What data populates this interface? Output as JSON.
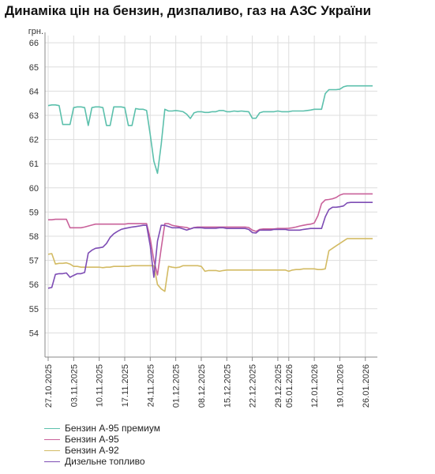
{
  "title": "Динаміка цін на бензин, дизпаливо, газ на АЗС України",
  "chart_data": {
    "type": "line",
    "title": "Динаміка цін на бензин, дизпаливо, газ на АЗС України",
    "ylabel": "грн.",
    "xlabel": "",
    "ylim": [
      53,
      66.3
    ],
    "yticks": [
      54,
      55,
      56,
      57,
      58,
      59,
      60,
      61,
      62,
      63,
      64,
      65,
      66
    ],
    "x": [
      "27.10.2025",
      "28.10.2025",
      "29.10.2025",
      "30.10.2025",
      "31.10.2025",
      "01.11.2025",
      "02.11.2025",
      "03.11.2025",
      "04.11.2025",
      "05.11.2025",
      "06.11.2025",
      "07.11.2025",
      "08.11.2025",
      "09.11.2025",
      "10.11.2025",
      "11.11.2025",
      "12.11.2025",
      "13.11.2025",
      "14.11.2025",
      "15.11.2025",
      "16.11.2025",
      "17.11.2025",
      "18.11.2025",
      "19.11.2025",
      "20.11.2025",
      "21.11.2025",
      "22.11.2025",
      "23.11.2025",
      "24.11.2025",
      "25.11.2025",
      "26.11.2025",
      "27.11.2025",
      "28.11.2025",
      "29.11.2025",
      "30.11.2025",
      "01.12.2025",
      "02.12.2025",
      "03.12.2025",
      "04.12.2025",
      "05.12.2025",
      "06.12.2025",
      "07.12.2025",
      "08.12.2025",
      "09.12.2025",
      "10.12.2025",
      "11.12.2025",
      "12.12.2025",
      "13.12.2025",
      "14.12.2025",
      "15.12.2025",
      "16.12.2025",
      "17.12.2025",
      "18.12.2025",
      "19.12.2025",
      "20.12.2025",
      "21.12.2025",
      "22.12.2025",
      "23.12.2025",
      "24.12.2025",
      "25.12.2025",
      "26.12.2025",
      "27.12.2025",
      "28.12.2025",
      "29.12.2025",
      "30.12.2025",
      "31.12.2025",
      "05.01.2026",
      "06.01.2026",
      "07.01.2026",
      "08.01.2026",
      "09.01.2026",
      "10.01.2026",
      "11.01.2026",
      "12.01.2026",
      "13.01.2026",
      "14.01.2026",
      "15.01.2026",
      "16.01.2026",
      "17.01.2026",
      "18.01.2026",
      "19.01.2026",
      "20.01.2026",
      "21.01.2026",
      "22.01.2026",
      "23.01.2026",
      "24.01.2026",
      "25.01.2026",
      "26.01.2026",
      "27.01.2026",
      "28.01.2026"
    ],
    "xtick_labels": [
      "27.10.2025",
      "03.11.2025",
      "10.11.2025",
      "17.11.2025",
      "24.11.2025",
      "01.12.2025",
      "08.12.2025",
      "15.12.2025",
      "22.12.2025",
      "29.12.2025",
      "05.01.2026",
      "12.01.2026",
      "19.01.2026",
      "26.01.2026"
    ],
    "grid": true,
    "legend_position": "bottom-left",
    "series": [
      {
        "name": "Бензин А-95 премиум",
        "color": "#5cc0ac",
        "values": [
          63.4,
          63.43,
          63.43,
          63.4,
          62.62,
          62.62,
          62.62,
          63.32,
          63.35,
          63.35,
          63.32,
          62.58,
          63.32,
          63.35,
          63.35,
          63.32,
          62.58,
          62.58,
          63.35,
          63.35,
          63.35,
          63.32,
          62.58,
          62.58,
          63.28,
          63.25,
          63.25,
          63.2,
          62.2,
          61.1,
          60.6,
          61.8,
          63.25,
          63.18,
          63.18,
          63.2,
          63.18,
          63.15,
          63.05,
          62.87,
          63.1,
          63.15,
          63.15,
          63.12,
          63.12,
          63.15,
          63.15,
          63.2,
          63.2,
          63.15,
          63.15,
          63.18,
          63.16,
          63.18,
          63.16,
          63.15,
          62.88,
          62.88,
          63.1,
          63.15,
          63.15,
          63.15,
          63.15,
          63.18,
          63.15,
          63.15,
          63.15,
          63.18,
          63.18,
          63.18,
          63.18,
          63.2,
          63.22,
          63.25,
          63.25,
          63.25,
          63.9,
          64.06,
          64.06,
          64.06,
          64.08,
          64.18,
          64.22,
          64.22,
          64.22,
          64.22,
          64.22,
          64.22,
          64.22,
          64.22
        ]
      },
      {
        "name": "Бензин А-95",
        "color": "#c9619a",
        "values": [
          58.68,
          58.68,
          58.7,
          58.7,
          58.7,
          58.7,
          58.35,
          58.35,
          58.35,
          58.35,
          58.38,
          58.42,
          58.46,
          58.5,
          58.5,
          58.5,
          58.5,
          58.5,
          58.5,
          58.5,
          58.5,
          58.5,
          58.52,
          58.52,
          58.52,
          58.52,
          58.52,
          58.52,
          57.9,
          57.0,
          56.4,
          57.5,
          58.52,
          58.52,
          58.45,
          58.42,
          58.4,
          58.38,
          58.36,
          58.3,
          58.36,
          58.38,
          58.38,
          58.38,
          58.38,
          58.38,
          58.38,
          58.38,
          58.38,
          58.38,
          58.38,
          58.38,
          58.38,
          58.38,
          58.38,
          58.36,
          58.25,
          58.2,
          58.28,
          58.3,
          58.3,
          58.3,
          58.3,
          58.32,
          58.32,
          58.32,
          58.33,
          58.35,
          58.38,
          58.42,
          58.45,
          58.48,
          58.5,
          58.55,
          58.85,
          59.35,
          59.5,
          59.52,
          59.55,
          59.6,
          59.7,
          59.75,
          59.75,
          59.75,
          59.75,
          59.75,
          59.75,
          59.75,
          59.75,
          59.75
        ]
      },
      {
        "name": "Бензин А-92",
        "color": "#d3bb64",
        "values": [
          57.25,
          57.28,
          56.85,
          56.88,
          56.88,
          56.9,
          56.85,
          56.75,
          56.75,
          56.72,
          56.72,
          56.72,
          56.72,
          56.72,
          56.72,
          56.7,
          56.72,
          56.72,
          56.75,
          56.75,
          56.75,
          56.75,
          56.75,
          56.78,
          56.78,
          56.78,
          56.78,
          56.78,
          56.78,
          56.78,
          56.0,
          55.82,
          55.72,
          56.75,
          56.72,
          56.7,
          56.72,
          56.78,
          56.78,
          56.78,
          56.78,
          56.78,
          56.75,
          56.55,
          56.58,
          56.58,
          56.58,
          56.55,
          56.58,
          56.6,
          56.6,
          56.6,
          56.6,
          56.6,
          56.6,
          56.6,
          56.6,
          56.6,
          56.6,
          56.6,
          56.6,
          56.6,
          56.6,
          56.6,
          56.6,
          56.6,
          56.55,
          56.6,
          56.62,
          56.62,
          56.65,
          56.65,
          56.65,
          56.65,
          56.62,
          56.62,
          56.65,
          57.4,
          57.5,
          57.6,
          57.7,
          57.8,
          57.9,
          57.9,
          57.9,
          57.9,
          57.9,
          57.9,
          57.9,
          57.9
        ]
      },
      {
        "name": "Дизельне топливо",
        "color": "#7d4cb4",
        "values": [
          55.85,
          55.88,
          56.42,
          56.45,
          56.45,
          56.48,
          56.3,
          56.38,
          56.45,
          56.45,
          56.5,
          57.3,
          57.42,
          57.5,
          57.52,
          57.55,
          57.7,
          57.95,
          58.1,
          58.2,
          58.28,
          58.32,
          58.35,
          58.38,
          58.4,
          58.42,
          58.45,
          58.45,
          57.6,
          56.3,
          57.8,
          58.45,
          58.45,
          58.4,
          58.35,
          58.35,
          58.35,
          58.3,
          58.25,
          58.3,
          58.35,
          58.35,
          58.35,
          58.33,
          58.33,
          58.33,
          58.33,
          58.35,
          58.35,
          58.32,
          58.32,
          58.32,
          58.32,
          58.32,
          58.32,
          58.28,
          58.15,
          58.13,
          58.25,
          58.25,
          58.25,
          58.25,
          58.28,
          58.28,
          58.28,
          58.28,
          58.25,
          58.25,
          58.25,
          58.25,
          58.28,
          58.3,
          58.32,
          58.32,
          58.32,
          58.32,
          58.8,
          59.1,
          59.2,
          59.2,
          59.22,
          59.25,
          59.38,
          59.4,
          59.4,
          59.4,
          59.4,
          59.4,
          59.4,
          59.4
        ]
      }
    ]
  }
}
